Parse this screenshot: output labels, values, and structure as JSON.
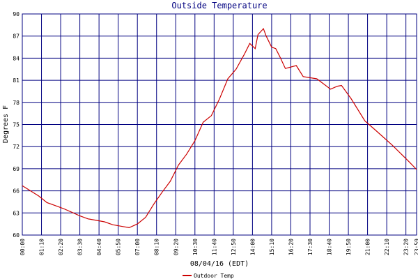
{
  "chart_data": {
    "type": "line",
    "title": "Outside Temperature",
    "y_label": "Degrees F",
    "x_label": "08/04/16 (EDT)",
    "x": [
      "00:00",
      "00:30",
      "01:00",
      "01:30",
      "02:00",
      "02:30",
      "03:00",
      "03:30",
      "04:00",
      "04:30",
      "05:00",
      "05:30",
      "06:00",
      "06:30",
      "07:00",
      "07:30",
      "08:00",
      "08:30",
      "09:00",
      "09:30",
      "10:00",
      "10:30",
      "11:00",
      "11:30",
      "12:00",
      "12:30",
      "13:00",
      "13:30",
      "13:50",
      "14:10",
      "14:20",
      "14:40",
      "14:50",
      "15:10",
      "15:25",
      "15:40",
      "16:00",
      "16:40",
      "17:05",
      "17:55",
      "18:45",
      "19:10",
      "19:25",
      "20:00",
      "20:50",
      "21:30",
      "22:00",
      "22:30",
      "23:00",
      "23:30",
      "23:59"
    ],
    "series": [
      {
        "name": "Outdoor Temp",
        "color": "#cc0000",
        "values": [
          66.7,
          66.0,
          65.3,
          64.4,
          64.0,
          63.6,
          63.1,
          62.6,
          62.2,
          62.0,
          61.8,
          61.4,
          61.2,
          61.0,
          61.5,
          62.4,
          64.2,
          65.8,
          67.3,
          69.5,
          71.0,
          72.8,
          75.3,
          76.2,
          78.5,
          81.2,
          82.5,
          84.5,
          86.0,
          85.3,
          87.2,
          88.0,
          87.0,
          85.5,
          85.3,
          84.2,
          82.6,
          83.0,
          81.5,
          81.2,
          79.8,
          80.2,
          80.3,
          78.5,
          75.5,
          74.2,
          73.2,
          72.2,
          71.1,
          70.0,
          68.9
        ]
      }
    ],
    "xlim": [
      "00:00",
      "23:59"
    ],
    "xticks": [
      "00:00",
      "01:10",
      "02:20",
      "03:30",
      "04:40",
      "05:50",
      "07:00",
      "08:10",
      "09:20",
      "10:30",
      "11:40",
      "12:50",
      "14:00",
      "15:10",
      "16:20",
      "17:30",
      "18:40",
      "19:50",
      "21:00",
      "22:10",
      "23:20",
      "23:59"
    ],
    "ylim": [
      60,
      90
    ],
    "yticks": [
      60,
      63,
      66,
      69,
      72,
      75,
      78,
      81,
      84,
      87,
      90
    ],
    "grid": true,
    "grid_color": "#000080"
  }
}
